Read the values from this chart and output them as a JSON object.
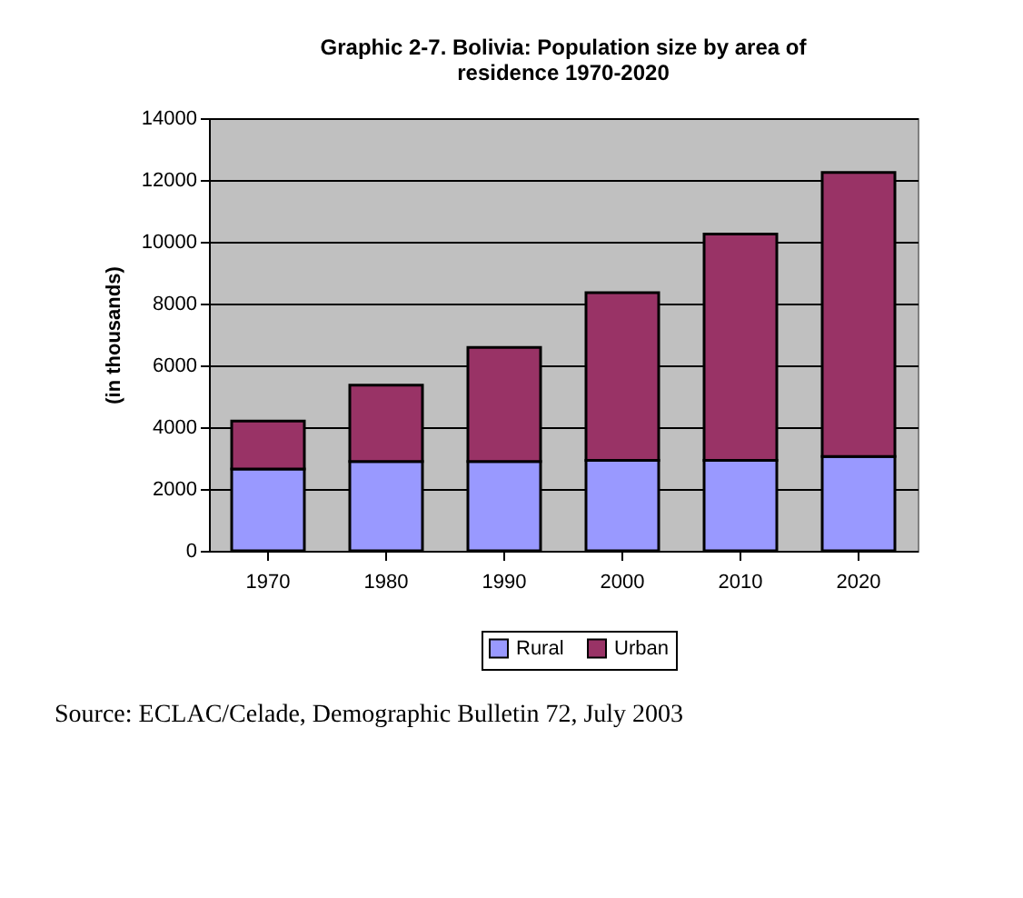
{
  "chart_data": {
    "type": "bar",
    "title": "Graphic 2-7. Bolivia: Population size by area of residence 1970-2020",
    "ylabel": "(in thousands)",
    "categories": [
      "1970",
      "1980",
      "1990",
      "2000",
      "2010",
      "2020"
    ],
    "stacked": true,
    "series": [
      {
        "name": "Rural",
        "color": "#9999ff",
        "values": [
          2650,
          2890,
          2890,
          2930,
          2930,
          3050
        ]
      },
      {
        "name": "Urban",
        "color": "#993366",
        "values": [
          1550,
          2470,
          3690,
          5420,
          7320,
          9190
        ]
      }
    ],
    "ylim": [
      0,
      14000
    ],
    "yticks": [
      0,
      2000,
      4000,
      6000,
      8000,
      10000,
      12000,
      14000
    ],
    "grid": "y",
    "legend": "bottom",
    "annotations": [
      "Source: ECLAC/Celade, Demographic Bulletin 72, July 2003"
    ]
  }
}
